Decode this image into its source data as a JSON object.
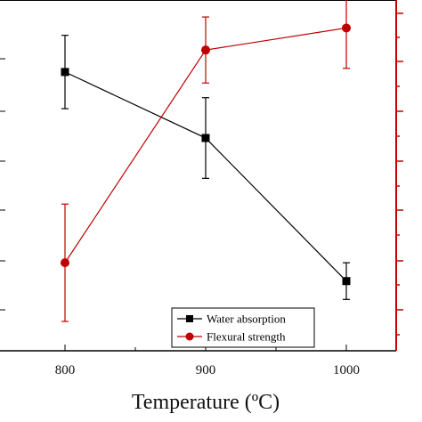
{
  "chart_data": {
    "type": "line",
    "xlabel": "Temperature (ºC)",
    "x": [
      800,
      900,
      1000
    ],
    "xlim": [
      700,
      1050
    ],
    "xticks": [
      "800",
      "900",
      "1000"
    ],
    "legend_position": "bottom-right",
    "series": [
      {
        "name": "Water absorption",
        "axis": "left",
        "color": "#000000",
        "marker": "square",
        "values": [
          76,
          58,
          19
        ],
        "error": [
          10,
          11,
          5
        ]
      },
      {
        "name": "Flexural strength",
        "axis": "right",
        "color": "#c00000",
        "marker": "circle",
        "values": [
          24,
          82,
          88
        ],
        "error": [
          16,
          9,
          11
        ]
      }
    ]
  }
}
